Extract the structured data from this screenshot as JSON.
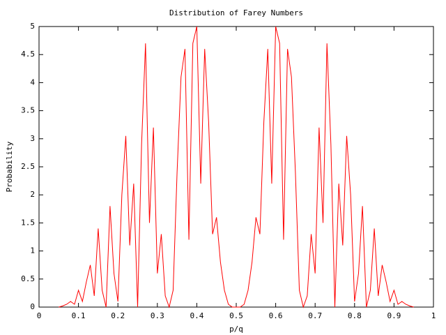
{
  "chart_data": {
    "type": "line",
    "title": "Distribution of Farey Numbers",
    "x_label": "p/q",
    "y_label": "Probability",
    "x": [
      0.05,
      0.06,
      0.07,
      0.08,
      0.09,
      0.1,
      0.11,
      0.12,
      0.13,
      0.14,
      0.15,
      0.16,
      0.17,
      0.18,
      0.19,
      0.2,
      0.21,
      0.22,
      0.23,
      0.24,
      0.25,
      0.26,
      0.27,
      0.28,
      0.29,
      0.3,
      0.31,
      0.32,
      0.33,
      0.34,
      0.35,
      0.36,
      0.37,
      0.38,
      0.39,
      0.4,
      0.41,
      0.42,
      0.43,
      0.44,
      0.45,
      0.46,
      0.47,
      0.48,
      0.49,
      0.5,
      0.51,
      0.52,
      0.53,
      0.54,
      0.55,
      0.56,
      0.57,
      0.58,
      0.59,
      0.6,
      0.61,
      0.62,
      0.63,
      0.64,
      0.65,
      0.66,
      0.67,
      0.68,
      0.69,
      0.7,
      0.71,
      0.72,
      0.73,
      0.74,
      0.75,
      0.76,
      0.77,
      0.78,
      0.79,
      0.8,
      0.81,
      0.82,
      0.83,
      0.84,
      0.85,
      0.86,
      0.87,
      0.88,
      0.89,
      0.9,
      0.91,
      0.92,
      0.93,
      0.94,
      0.95
    ],
    "series": [
      {
        "name": "Probability",
        "color": "#ff0000",
        "values": [
          0,
          0.02,
          0.05,
          0.1,
          0.05,
          0.3,
          0.1,
          0.45,
          0.75,
          0.2,
          1.4,
          0.3,
          0,
          1.8,
          0.6,
          0.1,
          2.0,
          3.05,
          1.1,
          2.2,
          0,
          2.9,
          4.7,
          1.5,
          3.2,
          0.6,
          1.3,
          0.2,
          0,
          0.3,
          2.4,
          4.1,
          4.6,
          1.2,
          4.7,
          5.0,
          2.2,
          4.6,
          3.3,
          1.3,
          1.6,
          0.8,
          0.3,
          0.05,
          0,
          0,
          0,
          0.05,
          0.3,
          0.8,
          1.6,
          1.3,
          3.3,
          4.6,
          2.2,
          5.0,
          4.7,
          1.2,
          4.6,
          4.1,
          2.4,
          0.3,
          0,
          0.2,
          1.3,
          0.6,
          3.2,
          1.5,
          4.7,
          2.9,
          0,
          2.2,
          1.1,
          3.05,
          2.0,
          0.1,
          0.6,
          1.8,
          0,
          0.3,
          1.4,
          0.2,
          0.75,
          0.45,
          0.1,
          0.3,
          0.05,
          0.1,
          0.05,
          0.02,
          0
        ]
      }
    ],
    "xlim": [
      0,
      1
    ],
    "xticks": [
      0,
      0.1,
      0.2,
      0.3,
      0.4,
      0.5,
      0.6,
      0.7,
      0.8,
      0.9,
      1
    ],
    "ylim": [
      0,
      5
    ],
    "yticks": [
      0,
      0.5,
      1,
      1.5,
      2,
      2.5,
      3,
      3.5,
      4,
      4.5,
      5
    ]
  }
}
